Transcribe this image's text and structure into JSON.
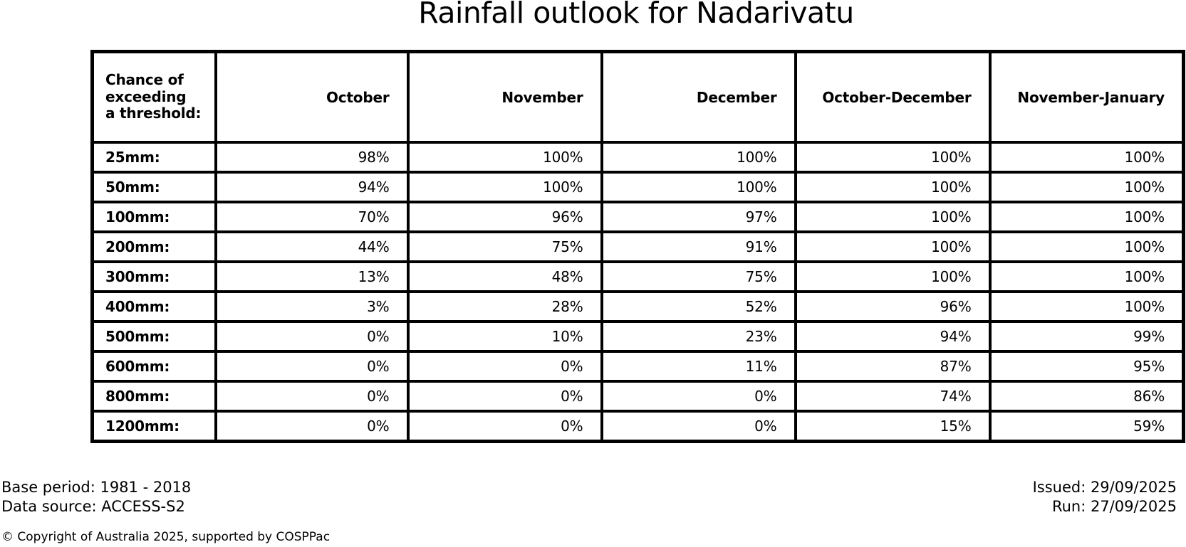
{
  "title": "Rainfall outlook for Nadarivatu",
  "table": {
    "corner_header": "Chance of\nexceeding\na threshold:",
    "column_headers": [
      "October",
      "November",
      "December",
      "October-December",
      "November-January"
    ],
    "rows": [
      {
        "label": "25mm:",
        "values": [
          "98%",
          "100%",
          "100%",
          "100%",
          "100%"
        ]
      },
      {
        "label": "50mm:",
        "values": [
          "94%",
          "100%",
          "100%",
          "100%",
          "100%"
        ]
      },
      {
        "label": "100mm:",
        "values": [
          "70%",
          "96%",
          "97%",
          "100%",
          "100%"
        ]
      },
      {
        "label": "200mm:",
        "values": [
          "44%",
          "75%",
          "91%",
          "100%",
          "100%"
        ]
      },
      {
        "label": "300mm:",
        "values": [
          "13%",
          "48%",
          "75%",
          "100%",
          "100%"
        ]
      },
      {
        "label": "400mm:",
        "values": [
          "3%",
          "28%",
          "52%",
          "96%",
          "100%"
        ]
      },
      {
        "label": "500mm:",
        "values": [
          "0%",
          "10%",
          "23%",
          "94%",
          "99%"
        ]
      },
      {
        "label": "600mm:",
        "values": [
          "0%",
          "0%",
          "11%",
          "87%",
          "95%"
        ]
      },
      {
        "label": "800mm:",
        "values": [
          "0%",
          "0%",
          "0%",
          "74%",
          "86%"
        ]
      },
      {
        "label": "1200mm:",
        "values": [
          "0%",
          "0%",
          "0%",
          "15%",
          "59%"
        ]
      }
    ]
  },
  "footer": {
    "base_period": "Base period: 1981 - 2018",
    "data_source": "Data source: ACCESS-S2",
    "issued": "Issued: 29/09/2025",
    "run": "Run: 27/09/2025",
    "copyright": "© Copyright of Australia 2025, supported by COSPPac"
  },
  "colors": {
    "text": "#000000",
    "background": "#ffffff",
    "border": "#000000"
  },
  "chart_data": {
    "type": "table",
    "title": "Rainfall outlook for Nadarivatu",
    "row_header": "Chance of exceeding a threshold:",
    "columns": [
      "October",
      "November",
      "December",
      "October-December",
      "November-January"
    ],
    "thresholds": [
      "25mm",
      "50mm",
      "100mm",
      "200mm",
      "300mm",
      "400mm",
      "500mm",
      "600mm",
      "800mm",
      "1200mm"
    ],
    "values_percent": [
      [
        98,
        100,
        100,
        100,
        100
      ],
      [
        94,
        100,
        100,
        100,
        100
      ],
      [
        70,
        96,
        97,
        100,
        100
      ],
      [
        44,
        75,
        91,
        100,
        100
      ],
      [
        13,
        48,
        75,
        100,
        100
      ],
      [
        3,
        28,
        52,
        96,
        100
      ],
      [
        0,
        10,
        23,
        94,
        99
      ],
      [
        0,
        0,
        11,
        87,
        95
      ],
      [
        0,
        0,
        0,
        74,
        86
      ],
      [
        0,
        0,
        0,
        15,
        59
      ]
    ],
    "base_period": "1981 - 2018",
    "data_source": "ACCESS-S2",
    "issued": "29/09/2025",
    "run": "27/09/2025"
  }
}
